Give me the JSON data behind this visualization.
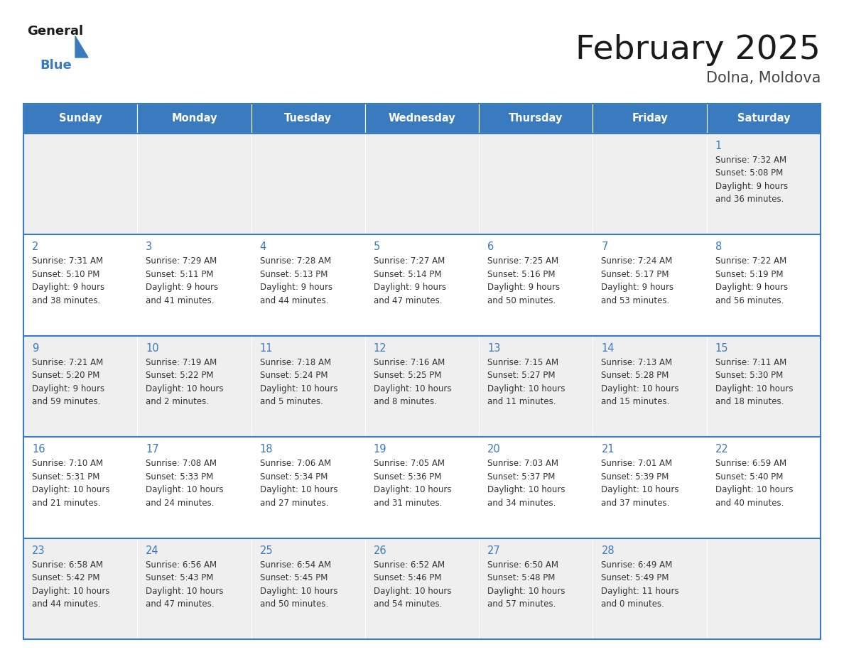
{
  "title": "February 2025",
  "subtitle": "Dolna, Moldova",
  "days_of_week": [
    "Sunday",
    "Monday",
    "Tuesday",
    "Wednesday",
    "Thursday",
    "Friday",
    "Saturday"
  ],
  "header_bg": "#3a7abf",
  "header_text_color": "#ffffff",
  "cell_bg_odd": "#efefef",
  "cell_bg_even": "#ffffff",
  "day_num_color": "#3a7abf",
  "text_color": "#333333",
  "border_color": "#3a7abf",
  "title_color": "#1a1a1a",
  "subtitle_color": "#444444",
  "logo_general_color": "#1a1a1a",
  "logo_blue_color": "#3a7abf",
  "calendar_data": [
    [
      null,
      null,
      null,
      null,
      null,
      null,
      {
        "day": 1,
        "sunrise": "7:32 AM",
        "sunset": "5:08 PM",
        "daylight": "9 hours",
        "daylight2": "and 36 minutes."
      }
    ],
    [
      {
        "day": 2,
        "sunrise": "7:31 AM",
        "sunset": "5:10 PM",
        "daylight": "9 hours",
        "daylight2": "and 38 minutes."
      },
      {
        "day": 3,
        "sunrise": "7:29 AM",
        "sunset": "5:11 PM",
        "daylight": "9 hours",
        "daylight2": "and 41 minutes."
      },
      {
        "day": 4,
        "sunrise": "7:28 AM",
        "sunset": "5:13 PM",
        "daylight": "9 hours",
        "daylight2": "and 44 minutes."
      },
      {
        "day": 5,
        "sunrise": "7:27 AM",
        "sunset": "5:14 PM",
        "daylight": "9 hours",
        "daylight2": "and 47 minutes."
      },
      {
        "day": 6,
        "sunrise": "7:25 AM",
        "sunset": "5:16 PM",
        "daylight": "9 hours",
        "daylight2": "and 50 minutes."
      },
      {
        "day": 7,
        "sunrise": "7:24 AM",
        "sunset": "5:17 PM",
        "daylight": "9 hours",
        "daylight2": "and 53 minutes."
      },
      {
        "day": 8,
        "sunrise": "7:22 AM",
        "sunset": "5:19 PM",
        "daylight": "9 hours",
        "daylight2": "and 56 minutes."
      }
    ],
    [
      {
        "day": 9,
        "sunrise": "7:21 AM",
        "sunset": "5:20 PM",
        "daylight": "9 hours",
        "daylight2": "and 59 minutes."
      },
      {
        "day": 10,
        "sunrise": "7:19 AM",
        "sunset": "5:22 PM",
        "daylight": "10 hours",
        "daylight2": "and 2 minutes."
      },
      {
        "day": 11,
        "sunrise": "7:18 AM",
        "sunset": "5:24 PM",
        "daylight": "10 hours",
        "daylight2": "and 5 minutes."
      },
      {
        "day": 12,
        "sunrise": "7:16 AM",
        "sunset": "5:25 PM",
        "daylight": "10 hours",
        "daylight2": "and 8 minutes."
      },
      {
        "day": 13,
        "sunrise": "7:15 AM",
        "sunset": "5:27 PM",
        "daylight": "10 hours",
        "daylight2": "and 11 minutes."
      },
      {
        "day": 14,
        "sunrise": "7:13 AM",
        "sunset": "5:28 PM",
        "daylight": "10 hours",
        "daylight2": "and 15 minutes."
      },
      {
        "day": 15,
        "sunrise": "7:11 AM",
        "sunset": "5:30 PM",
        "daylight": "10 hours",
        "daylight2": "and 18 minutes."
      }
    ],
    [
      {
        "day": 16,
        "sunrise": "7:10 AM",
        "sunset": "5:31 PM",
        "daylight": "10 hours",
        "daylight2": "and 21 minutes."
      },
      {
        "day": 17,
        "sunrise": "7:08 AM",
        "sunset": "5:33 PM",
        "daylight": "10 hours",
        "daylight2": "and 24 minutes."
      },
      {
        "day": 18,
        "sunrise": "7:06 AM",
        "sunset": "5:34 PM",
        "daylight": "10 hours",
        "daylight2": "and 27 minutes."
      },
      {
        "day": 19,
        "sunrise": "7:05 AM",
        "sunset": "5:36 PM",
        "daylight": "10 hours",
        "daylight2": "and 31 minutes."
      },
      {
        "day": 20,
        "sunrise": "7:03 AM",
        "sunset": "5:37 PM",
        "daylight": "10 hours",
        "daylight2": "and 34 minutes."
      },
      {
        "day": 21,
        "sunrise": "7:01 AM",
        "sunset": "5:39 PM",
        "daylight": "10 hours",
        "daylight2": "and 37 minutes."
      },
      {
        "day": 22,
        "sunrise": "6:59 AM",
        "sunset": "5:40 PM",
        "daylight": "10 hours",
        "daylight2": "and 40 minutes."
      }
    ],
    [
      {
        "day": 23,
        "sunrise": "6:58 AM",
        "sunset": "5:42 PM",
        "daylight": "10 hours",
        "daylight2": "and 44 minutes."
      },
      {
        "day": 24,
        "sunrise": "6:56 AM",
        "sunset": "5:43 PM",
        "daylight": "10 hours",
        "daylight2": "and 47 minutes."
      },
      {
        "day": 25,
        "sunrise": "6:54 AM",
        "sunset": "5:45 PM",
        "daylight": "10 hours",
        "daylight2": "and 50 minutes."
      },
      {
        "day": 26,
        "sunrise": "6:52 AM",
        "sunset": "5:46 PM",
        "daylight": "10 hours",
        "daylight2": "and 54 minutes."
      },
      {
        "day": 27,
        "sunrise": "6:50 AM",
        "sunset": "5:48 PM",
        "daylight": "10 hours",
        "daylight2": "and 57 minutes."
      },
      {
        "day": 28,
        "sunrise": "6:49 AM",
        "sunset": "5:49 PM",
        "daylight": "11 hours",
        "daylight2": "and 0 minutes."
      },
      null
    ]
  ]
}
